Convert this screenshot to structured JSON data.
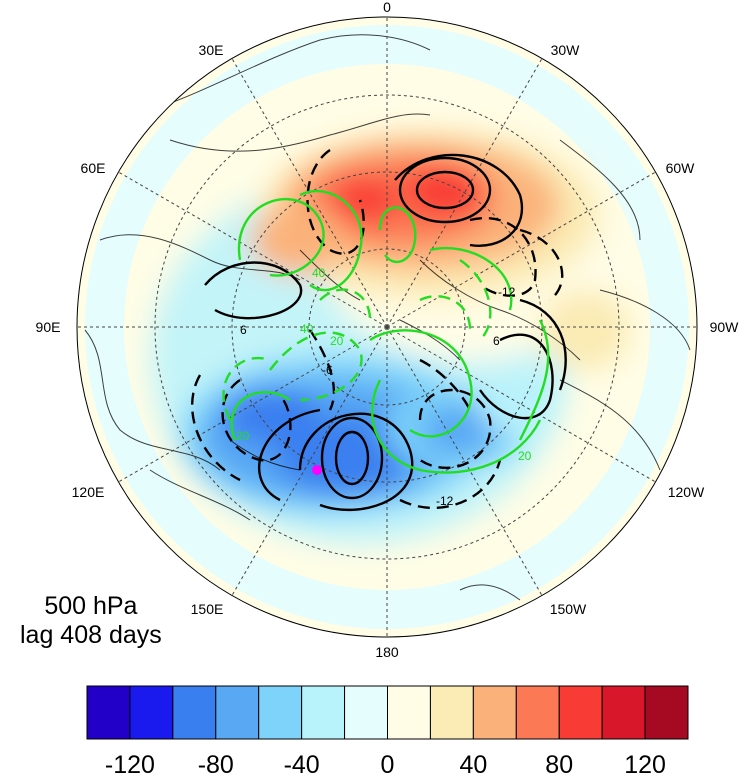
{
  "caption": {
    "level": "500 hPa",
    "lag": "lag 408 days"
  },
  "longitude_labels": [
    "0",
    "30W",
    "60W",
    "90W",
    "120W",
    "150W",
    "180",
    "150E",
    "120E",
    "90E",
    "60E",
    "30E"
  ],
  "contour_labels": {
    "black": [
      "6",
      "-12",
      "6",
      "-12",
      "-6"
    ],
    "green": [
      "40",
      "40",
      "20",
      "20",
      "20"
    ]
  },
  "colorbar": {
    "ticks": [
      "-120",
      "-80",
      "-40",
      "0",
      "40",
      "80",
      "120"
    ],
    "colors": [
      "#2300c8",
      "#1a1aef",
      "#3a7ff0",
      "#58a8f4",
      "#7dd3fa",
      "#b8f2fb",
      "#e6fdfd",
      "#fffde6",
      "#fbebb4",
      "#fbb27a",
      "#fb7a55",
      "#f93b35",
      "#d9172a",
      "#a50a22"
    ]
  },
  "colors": {
    "contour_black": "#000000",
    "contour_green": "#22dd22",
    "marker": "#ff00ff",
    "grid": "#444444"
  }
}
